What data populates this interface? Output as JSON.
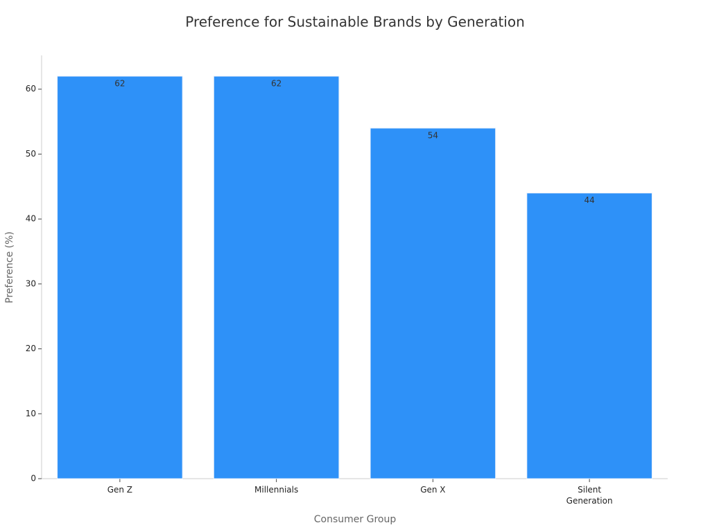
{
  "chart_data": {
    "type": "bar",
    "title": "Preference for Sustainable Brands by Generation",
    "x_label": "Consumer Group",
    "y_label": "Preference (%)",
    "categories": [
      "Gen Z",
      "Millennials",
      "Gen X",
      "Silent Generation"
    ],
    "values": [
      62,
      62,
      54,
      44
    ],
    "color": "#2e91f8",
    "ylim": [
      0,
      65.2
    ],
    "yticks": [
      0,
      10,
      20,
      30,
      40,
      50,
      60
    ],
    "grid": false
  }
}
